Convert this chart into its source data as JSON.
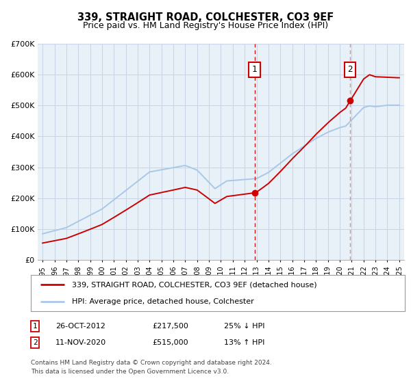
{
  "title": "339, STRAIGHT ROAD, COLCHESTER, CO3 9EF",
  "subtitle": "Price paid vs. HM Land Registry's House Price Index (HPI)",
  "ylim": [
    0,
    700000
  ],
  "yticks": [
    0,
    100000,
    200000,
    300000,
    400000,
    500000,
    600000,
    700000
  ],
  "ytick_labels": [
    "£0",
    "£100K",
    "£200K",
    "£300K",
    "£400K",
    "£500K",
    "£600K",
    "£700K"
  ],
  "xlim_start": 1994.6,
  "xlim_end": 2025.4,
  "xticks": [
    1995,
    1996,
    1997,
    1998,
    1999,
    2000,
    2001,
    2002,
    2003,
    2004,
    2005,
    2006,
    2007,
    2008,
    2009,
    2010,
    2011,
    2012,
    2013,
    2014,
    2015,
    2016,
    2017,
    2018,
    2019,
    2020,
    2021,
    2022,
    2023,
    2024,
    2025
  ],
  "hpi_color": "#a8c8e8",
  "price_color": "#cc0000",
  "point1_x": 2012.83,
  "point1_y": 217500,
  "point2_x": 2020.87,
  "point2_y": 515000,
  "vline1_x": 2012.83,
  "vline2_x": 2020.87,
  "vline1_color": "#cc0000",
  "vline2_color": "#cc6666",
  "legend_label1": "339, STRAIGHT ROAD, COLCHESTER, CO3 9EF (detached house)",
  "legend_label2": "HPI: Average price, detached house, Colchester",
  "table_row1": [
    "1",
    "26-OCT-2012",
    "£217,500",
    "25% ↓ HPI"
  ],
  "table_row2": [
    "2",
    "11-NOV-2020",
    "£515,000",
    "13% ↑ HPI"
  ],
  "footer": "Contains HM Land Registry data © Crown copyright and database right 2024.\nThis data is licensed under the Open Government Licence v3.0.",
  "bg_color": "#ffffff",
  "plot_bg_color": "#e8f0f8",
  "grid_color": "#c8d4e4",
  "box_edgecolor": "#cc0000"
}
